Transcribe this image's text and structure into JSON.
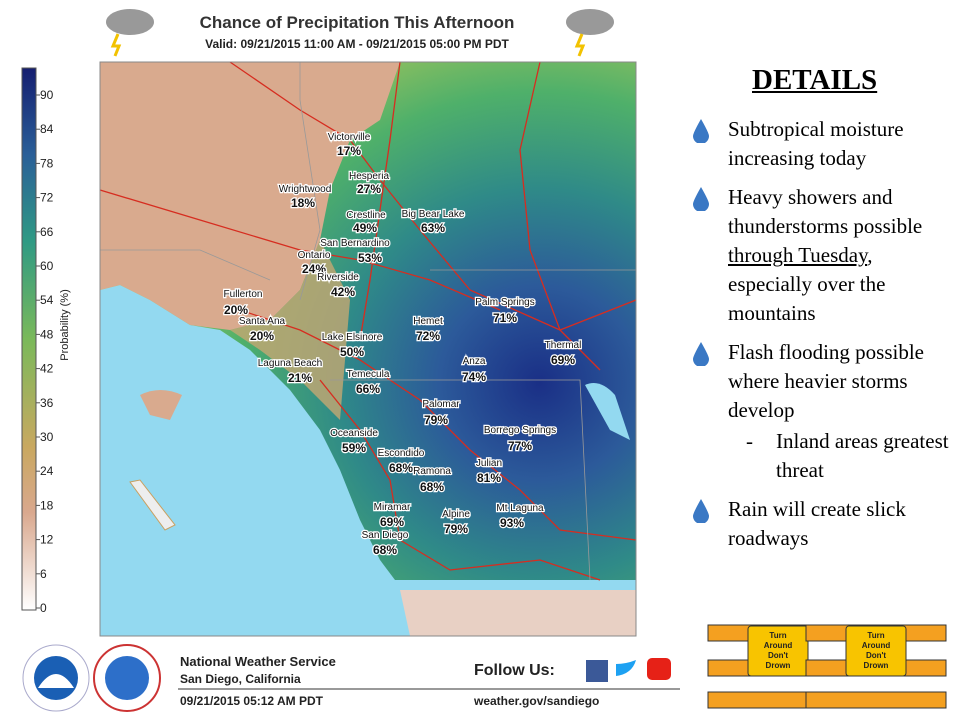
{
  "header": {
    "title": "Chance of Precipitation This Afternoon",
    "valid": "Valid: 09/21/2015 11:00 AM - 09/21/2015 05:00 PM PDT"
  },
  "colorbar": {
    "label": "Probability (%)",
    "ticks": [
      0,
      6,
      12,
      18,
      24,
      30,
      36,
      42,
      48,
      54,
      60,
      66,
      72,
      78,
      84,
      90
    ]
  },
  "places": [
    {
      "name": "Victorville",
      "chance": "17%"
    },
    {
      "name": "Hesperia",
      "chance": "27%"
    },
    {
      "name": "Wrightwood",
      "chance": "18%"
    },
    {
      "name": "Crestline",
      "chance": "49%"
    },
    {
      "name": "Big Bear Lake",
      "chance": "63%"
    },
    {
      "name": "San Bernardino",
      "chance": "53%"
    },
    {
      "name": "Ontario",
      "chance": "24%"
    },
    {
      "name": "Riverside",
      "chance": "42%"
    },
    {
      "name": "Fullerton",
      "chance": "20%"
    },
    {
      "name": "Santa Ana",
      "chance": "20%"
    },
    {
      "name": "Palm Springs",
      "chance": "71%"
    },
    {
      "name": "Hemet",
      "chance": "72%"
    },
    {
      "name": "Lake Elsinore",
      "chance": "50%"
    },
    {
      "name": "Thermal",
      "chance": "69%"
    },
    {
      "name": "Laguna Beach",
      "chance": "21%"
    },
    {
      "name": "Anza",
      "chance": "74%"
    },
    {
      "name": "Temecula",
      "chance": "66%"
    },
    {
      "name": "Palomar",
      "chance": "79%"
    },
    {
      "name": "Borrego Springs",
      "chance": "77%"
    },
    {
      "name": "Oceanside",
      "chance": "59%"
    },
    {
      "name": "Escondido",
      "chance": "68%"
    },
    {
      "name": "Julian",
      "chance": "81%"
    },
    {
      "name": "Ramona",
      "chance": "68%"
    },
    {
      "name": "Mt Laguna",
      "chance": "93%"
    },
    {
      "name": "Miramar",
      "chance": "69%"
    },
    {
      "name": "Alpine",
      "chance": "79%"
    },
    {
      "name": "San Diego",
      "chance": "68%"
    }
  ],
  "details": {
    "title": "DETAILS",
    "bullet1": "Subtropical moisture increasing today",
    "bullet2_before": "Heavy showers and thunderstorms possible ",
    "bullet2_underlined": "through Tuesday",
    "bullet2_after": ", especially over the mountains",
    "bullet3": "Flash flooding possible where heavier storms develop",
    "sub_dash": "-",
    "sub_bullet": "Inland areas greatest threat",
    "bullet4": "Rain will create slick roadways"
  },
  "sign": {
    "line1": "Turn",
    "line2": "Around",
    "line3": "Don't",
    "line4": "Drown"
  },
  "footer": {
    "agency": "National Weather Service",
    "office": "San Diego, California",
    "issued": "09/21/2015 05:12 AM PDT",
    "follow": "Follow Us:",
    "website": "weather.gov/sandiego"
  }
}
